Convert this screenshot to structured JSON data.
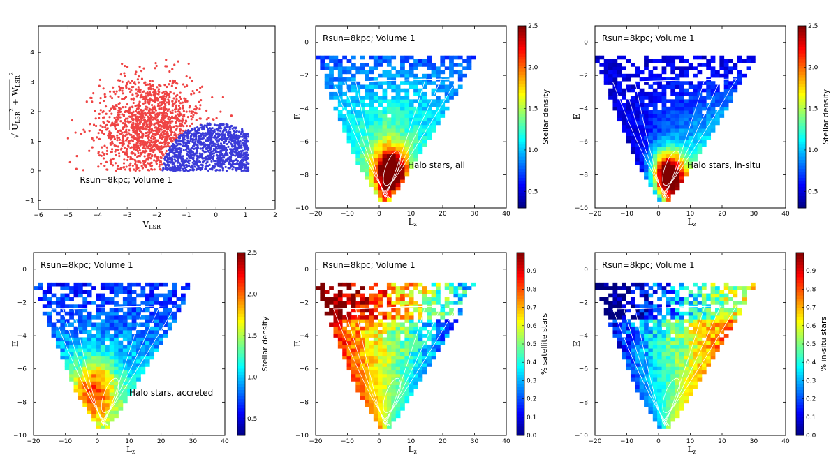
{
  "colors": {
    "red_points": "#ef4444",
    "blue_points": "#3b3bd8",
    "contour": "#ffffff",
    "jet": [
      "#00007f",
      "#0000ff",
      "#007fff",
      "#00ffff",
      "#7fff7f",
      "#ffff00",
      "#ff7f00",
      "#ff0000",
      "#7f0000"
    ]
  },
  "chart_data": [
    {
      "id": "velocity",
      "type": "scatter",
      "annotation": "Rsun=8kpc; Volume 1",
      "xlabel": "V_LSR",
      "ylabel": "sqrt(U_LSR^2 + W_LSR^2)",
      "xlim": [
        -6,
        2
      ],
      "ylim": [
        -1.3,
        4.9
      ],
      "xticks": [
        -6,
        -5,
        -4,
        -3,
        -2,
        -1,
        0,
        1,
        2
      ],
      "yticks": [
        -1,
        0,
        1,
        2,
        3,
        4
      ],
      "series": [
        {
          "group": "outside",
          "color": "#ef4444",
          "count": 1500
        },
        {
          "group": "inside",
          "color": "#3b3bd8",
          "count": 1300
        }
      ],
      "boundary": {
        "center": [
          0,
          0
        ],
        "radius": 1.8
      }
    },
    {
      "id": "all",
      "type": "heatmap",
      "annotation": "Rsun=8kpc; Volume 1",
      "label": "Halo stars, all",
      "xlabel": "L_z",
      "ylabel": "E",
      "xlim": [
        -20,
        40
      ],
      "ylim": [
        -10,
        1
      ],
      "xticks": [
        -20,
        -10,
        0,
        10,
        20,
        30,
        40
      ],
      "yticks": [
        -10,
        -8,
        -6,
        -4,
        -2,
        0
      ],
      "colorbar": {
        "label": "Stellar density",
        "range": [
          0.3,
          2.5
        ],
        "ticks": [
          0.5,
          1.0,
          1.5,
          2.0,
          2.5
        ],
        "tick_labels": [
          "0.5",
          "1.0",
          "1.5",
          "2.0",
          "2.5"
        ]
      },
      "peak": [
        4,
        -7.8
      ]
    },
    {
      "id": "insitu",
      "type": "heatmap",
      "annotation": "Rsun=8kpc; Volume 1",
      "label": "Halo stars, in-situ",
      "xlabel": "L_z",
      "ylabel": "E",
      "xlim": [
        -20,
        40
      ],
      "ylim": [
        -10,
        1
      ],
      "xticks": [
        -20,
        -10,
        0,
        10,
        20,
        30,
        40
      ],
      "yticks": [
        -10,
        -8,
        -6,
        -4,
        -2,
        0
      ],
      "colorbar": {
        "label": "Stellar density",
        "range": [
          0.3,
          2.5
        ],
        "ticks": [
          0.5,
          1.0,
          1.5,
          2.0,
          2.5
        ],
        "tick_labels": [
          "0.5",
          "1.0",
          "1.5",
          "2.0",
          "2.5"
        ]
      },
      "peak": [
        3,
        -8.0
      ]
    },
    {
      "id": "accreted",
      "type": "heatmap",
      "annotation": "Rsun=8kpc; Volume 1",
      "label": "Halo stars, accreted",
      "xlabel": "L_z",
      "ylabel": "E",
      "xlim": [
        -20,
        40
      ],
      "ylim": [
        -10,
        1
      ],
      "xticks": [
        -20,
        -10,
        0,
        10,
        20,
        30,
        40
      ],
      "yticks": [
        -10,
        -8,
        -6,
        -4,
        -2,
        0
      ],
      "colorbar": {
        "label": "Stellar density",
        "range": [
          0.3,
          2.5
        ],
        "ticks": [
          0.5,
          1.0,
          1.5,
          2.0,
          2.5
        ],
        "tick_labels": [
          "0.5",
          "1.0",
          "1.5",
          "2.0",
          "2.5"
        ]
      },
      "peak": [
        -1,
        -7.6
      ]
    },
    {
      "id": "satfrac",
      "type": "heatmap",
      "annotation": "Rsun=8kpc; Volume 1",
      "label": "",
      "xlabel": "L_z",
      "ylabel": "E",
      "xlim": [
        -20,
        40
      ],
      "ylim": [
        -10,
        1
      ],
      "xticks": [
        -20,
        -10,
        0,
        10,
        20,
        30,
        40
      ],
      "yticks": [
        -10,
        -8,
        -6,
        -4,
        -2,
        0
      ],
      "colorbar": {
        "label": "% satellite stars",
        "range": [
          0,
          1
        ],
        "ticks": [
          0,
          0.1,
          0.2,
          0.3,
          0.4,
          0.5,
          0.6,
          0.7,
          0.8,
          0.9
        ],
        "tick_labels": [
          "0.0",
          "0.1",
          "0.2",
          "0.3",
          "0.4",
          "0.5",
          "0.6",
          "0.7",
          "0.8",
          "0.9"
        ]
      }
    },
    {
      "id": "insitufrac",
      "type": "heatmap",
      "annotation": "Rsun=8kpc; Volume 1",
      "label": "",
      "xlabel": "L_z",
      "ylabel": "E",
      "xlim": [
        -20,
        40
      ],
      "ylim": [
        -10,
        1
      ],
      "xticks": [
        -20,
        -10,
        0,
        10,
        20,
        30,
        40
      ],
      "yticks": [
        -10,
        -8,
        -6,
        -4,
        -2,
        0
      ],
      "colorbar": {
        "label": "% in-situ stars",
        "range": [
          0,
          1
        ],
        "ticks": [
          0,
          0.1,
          0.2,
          0.3,
          0.4,
          0.5,
          0.6,
          0.7,
          0.8,
          0.9
        ],
        "tick_labels": [
          "0.0",
          "0.1",
          "0.2",
          "0.3",
          "0.4",
          "0.5",
          "0.6",
          "0.7",
          "0.8",
          "0.9"
        ]
      }
    }
  ]
}
